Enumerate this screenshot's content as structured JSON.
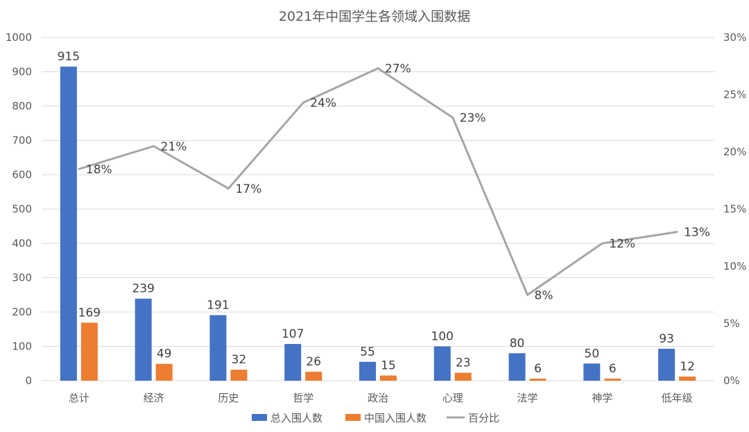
{
  "chart_data": {
    "type": "bar",
    "title": "2021年中国学生各领域入围数据",
    "categories": [
      "总计",
      "经济",
      "历史",
      "哲学",
      "政治",
      "心理",
      "法学",
      "神学",
      "低年级"
    ],
    "series": [
      {
        "name": "总入围人数",
        "type": "bar",
        "axis": "left",
        "color": "#4472C4",
        "values": [
          915,
          239,
          191,
          107,
          55,
          100,
          80,
          50,
          93
        ],
        "labels": [
          "915",
          "239",
          "191",
          "107",
          "55",
          "100",
          "80",
          "50",
          "93"
        ]
      },
      {
        "name": "中国入围人数",
        "type": "bar",
        "axis": "left",
        "color": "#ED7D31",
        "values": [
          169,
          49,
          32,
          26,
          15,
          23,
          6,
          6,
          12
        ],
        "labels": [
          "169",
          "49",
          "32",
          "26",
          "15",
          "23",
          "6",
          "6",
          "12"
        ]
      },
      {
        "name": "百分比",
        "type": "line",
        "axis": "right",
        "color": "#A5A5A5",
        "values": [
          18.5,
          20.5,
          16.8,
          24.3,
          27.3,
          23.0,
          7.5,
          12.0,
          13.0
        ],
        "labels": [
          "18%",
          "21%",
          "17%",
          "24%",
          "27%",
          "23%",
          "8%",
          "12%",
          "13%"
        ]
      }
    ],
    "y_left": {
      "min": 0,
      "max": 1000,
      "step": 100,
      "ticks": [
        "0",
        "100",
        "200",
        "300",
        "400",
        "500",
        "600",
        "700",
        "800",
        "900",
        "1000"
      ]
    },
    "y_right": {
      "min": 0,
      "max": 30,
      "step": 5,
      "ticks": [
        "0%",
        "5%",
        "10%",
        "15%",
        "20%",
        "25%",
        "30%"
      ]
    },
    "grid": true,
    "legend": "bottom"
  }
}
